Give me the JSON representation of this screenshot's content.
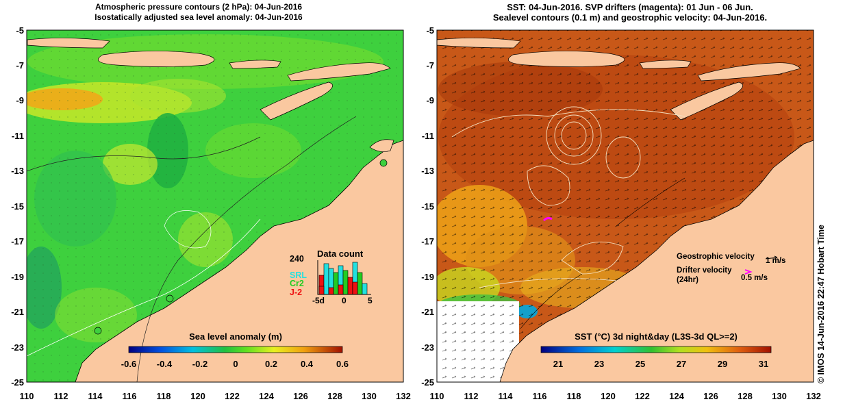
{
  "left_panel": {
    "title_line1": "Atmospheric pressure contours (2 hPa): 04-Jun-2016",
    "title_line2": "Isostatically adjusted sea level anomaly: 04-Jun-2016",
    "colorbar_label": "Sea level anomaly (m)",
    "colorbar_ticks": [
      "-0.6",
      "-0.4",
      "-0.2",
      "0",
      "0.2",
      "0.4",
      "0.6"
    ],
    "inset": {
      "title": "Data count",
      "y_label": "240",
      "x_ticks": [
        "-5d",
        "0",
        "5"
      ],
      "legend": [
        {
          "label": "SRL",
          "color": "#22e0e0"
        },
        {
          "label": "Cr2",
          "color": "#22cc22"
        },
        {
          "label": "J-2",
          "color": "#ee1111"
        }
      ]
    }
  },
  "right_panel": {
    "title_line1": "SST: 04-Jun-2016. SVP drifters (magenta): 01 Jun - 06 Jun.",
    "title_line2": "Sealevel contours (0.1 m) and geostrophic velocity: 04-Jun-2016.",
    "colorbar_label": "SST (°C) 3d night&day (L3S-3d QL>=2)",
    "colorbar_ticks": [
      "21",
      "23",
      "25",
      "27",
      "29",
      "31"
    ],
    "legend": {
      "geostrophic_label": "Geostrophic velocity",
      "geostrophic_scale": "1 m/s",
      "drifter_label": "Drifter velocity",
      "drifter_sub": "(24hr)",
      "drifter_scale": "0.5 m/s"
    }
  },
  "axes": {
    "y_ticks": [
      "-5",
      "-7",
      "-9",
      "-11",
      "-13",
      "-15",
      "-17",
      "-19",
      "-21",
      "-23",
      "-25"
    ],
    "x_ticks": [
      "110",
      "112",
      "114",
      "116",
      "118",
      "120",
      "122",
      "124",
      "126",
      "128",
      "130",
      "132"
    ]
  },
  "credit": "© IMOS 14-Jun-2016 22:47 Hobart Time",
  "colors": {
    "land": "#fac8a0",
    "sla_base": "#3ed03e",
    "sst_base": "#d06018"
  }
}
